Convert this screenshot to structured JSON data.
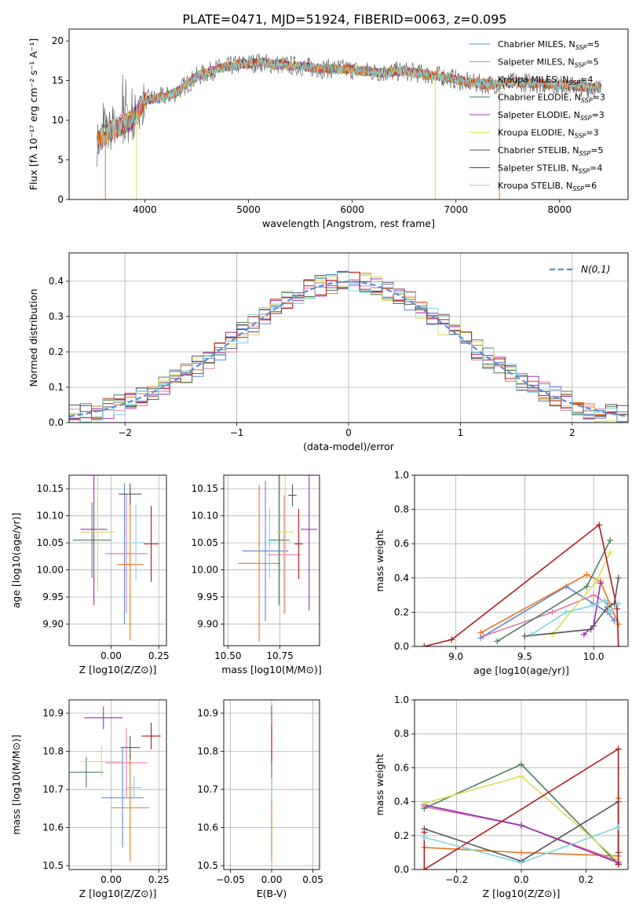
{
  "title": "PLATE=0471, MJD=51924, FIBERID=0063, z=0.095",
  "colors": {
    "Chabrier MILES": "#5b84d6",
    "Salpeter MILES": "#e07aa8",
    "Kroupa MILES": "#e8761e",
    "Chabrier ELODIE": "#4e7d5b",
    "Salpeter ELODIE": "#9b2fb0",
    "Kroupa ELODIE": "#d6df5a",
    "Chabrier STELIB": "#555555",
    "Salpeter STELIB": "#b01c1c",
    "Kroupa STELIB": "#7ed6dd",
    "normal": "#5b8ad6"
  },
  "chart_data": [
    {
      "id": "spectrum",
      "type": "line",
      "xlabel": "wavelength [Angstrom, rest frame]",
      "ylabel": "Flux [fλ 10⁻¹⁷ erg cm⁻² s⁻¹ A⁻¹]",
      "xlim": [
        3270,
        8660
      ],
      "ylim": [
        0,
        21.5
      ],
      "xticks": [
        4000,
        5000,
        6000,
        7000,
        8000
      ],
      "yticks": [
        0,
        5,
        10,
        15,
        20
      ],
      "legend": "top-right",
      "legend_entries": [
        "Chabrier MILES, N_SSP=5",
        "Salpeter MILES, N_SSP=5",
        "Kroupa MILES, N_SSP=4",
        "Chabrier ELODIE, N_SSP=3",
        "Salpeter ELODIE, N_SSP=3",
        "Kroupa ELODIE, N_SSP=3",
        "Chabrier STELIB, N_SSP=5",
        "Salpeter STELIB, N_SSP=4",
        "Kroupa STELIB, N_SSP=6"
      ],
      "continuum": [
        [
          3540,
          7.0
        ],
        [
          3600,
          8.0
        ],
        [
          3700,
          9.0
        ],
        [
          3800,
          9.5
        ],
        [
          3900,
          10.5
        ],
        [
          4000,
          12.5
        ],
        [
          4200,
          13.0
        ],
        [
          4300,
          13.5
        ],
        [
          4500,
          15.5
        ],
        [
          4700,
          16.5
        ],
        [
          4900,
          17.0
        ],
        [
          5100,
          17.3
        ],
        [
          5300,
          17.0
        ],
        [
          5500,
          16.8
        ],
        [
          5700,
          16.5
        ],
        [
          5900,
          16.5
        ],
        [
          6100,
          16.2
        ],
        [
          6300,
          16.0
        ],
        [
          6500,
          16.2
        ],
        [
          6700,
          15.8
        ],
        [
          6900,
          15.5
        ],
        [
          7100,
          14.8
        ],
        [
          7300,
          14.5
        ],
        [
          7600,
          14.8
        ],
        [
          8000,
          14.5
        ],
        [
          8400,
          14.0
        ]
      ]
    },
    {
      "id": "residuals",
      "type": "bar",
      "xlabel": "(data-model)/error",
      "ylabel": "Normed distribution",
      "xlim": [
        -2.5,
        2.5
      ],
      "ylim": [
        0,
        0.48
      ],
      "xticks": [
        -2,
        -1,
        0,
        1,
        2
      ],
      "yticks": [
        0.0,
        0.1,
        0.2,
        0.3,
        0.4
      ],
      "legend": "top-right",
      "legend_entries": [
        "N(0,1)"
      ],
      "bin_width": 0.1
    },
    {
      "id": "age_vs_Z",
      "type": "scatter",
      "xlabel": "Z [log10(Z/Z⊙)]",
      "ylabel": "age [log10(age/yr)]",
      "xlim": [
        -0.22,
        0.29
      ],
      "ylim": [
        9.86,
        10.175
      ],
      "xticks": [
        0.0,
        0.25
      ],
      "yticks": [
        9.9,
        9.95,
        10.0,
        10.05,
        10.1,
        10.15
      ],
      "points": [
        {
          "model": "Chabrier MILES",
          "x": 0.07,
          "y": 10.03,
          "xerr": 0.1,
          "yerr": 0.13
        },
        {
          "model": "Salpeter MILES",
          "x": 0.08,
          "y": 10.03,
          "xerr": 0.11,
          "yerr": 0.11
        },
        {
          "model": "Kroupa MILES",
          "x": 0.1,
          "y": 10.01,
          "xerr": 0.07,
          "yerr": 0.14
        },
        {
          "model": "Chabrier ELODIE",
          "x": -0.1,
          "y": 10.055,
          "xerr": 0.1,
          "yerr": 0.07
        },
        {
          "model": "Salpeter ELODIE",
          "x": -0.09,
          "y": 10.075,
          "xerr": 0.07,
          "yerr": 0.14
        },
        {
          "model": "Kroupa ELODIE",
          "x": -0.07,
          "y": 10.07,
          "xerr": 0.09,
          "yerr": 0.11
        },
        {
          "model": "Chabrier STELIB",
          "x": 0.1,
          "y": 10.14,
          "xerr": 0.06,
          "yerr": 0.02
        },
        {
          "model": "Salpeter STELIB",
          "x": 0.21,
          "y": 10.048,
          "xerr": 0.04,
          "yerr": 0.07
        },
        {
          "model": "Kroupa STELIB",
          "x": 0.13,
          "y": 10.05,
          "xerr": 0.05,
          "yerr": 0.07
        }
      ]
    },
    {
      "id": "age_vs_mass",
      "type": "scatter",
      "xlabel": "mass [log10(M/M⊙)]",
      "ylabel": "",
      "xlim": [
        10.48,
        10.94
      ],
      "ylim": [
        9.86,
        10.175
      ],
      "xticks": [
        10.5,
        10.75
      ],
      "yticks": [
        9.9,
        9.95,
        10.0,
        10.05,
        10.1,
        10.15
      ],
      "points": [
        {
          "model": "Chabrier MILES",
          "x": 10.68,
          "y": 10.035,
          "xerr": 0.11,
          "yerr": 0.13
        },
        {
          "model": "Salpeter MILES",
          "x": 10.77,
          "y": 10.028,
          "xerr": 0.08,
          "yerr": 0.11
        },
        {
          "model": "Kroupa MILES",
          "x": 10.65,
          "y": 10.012,
          "xerr": 0.1,
          "yerr": 0.145
        },
        {
          "model": "Chabrier ELODIE",
          "x": 10.745,
          "y": 10.055,
          "xerr": 0.05,
          "yerr": 0.12
        },
        {
          "model": "Salpeter ELODIE",
          "x": 10.89,
          "y": 10.075,
          "xerr": 0.04,
          "yerr": 0.15
        },
        {
          "model": "Kroupa ELODIE",
          "x": 10.775,
          "y": 10.07,
          "xerr": 0.04,
          "yerr": 0.15
        },
        {
          "model": "Chabrier STELIB",
          "x": 10.81,
          "y": 10.138,
          "xerr": 0.02,
          "yerr": 0.02
        },
        {
          "model": "Salpeter STELIB",
          "x": 10.84,
          "y": 10.048,
          "xerr": 0.02,
          "yerr": 0.065
        },
        {
          "model": "Kroupa STELIB",
          "x": 10.7,
          "y": 10.05,
          "xerr": 0.03,
          "yerr": 0.065
        }
      ]
    },
    {
      "id": "weight_vs_age",
      "type": "line",
      "xlabel": "age [log10(age/yr)]",
      "ylabel": "mass weight",
      "xlim": [
        8.7,
        10.25
      ],
      "ylim": [
        0,
        1.0
      ],
      "xticks": [
        9.0,
        9.5,
        10.0
      ],
      "yticks": [
        0.0,
        0.2,
        0.4,
        0.6,
        0.8,
        1.0
      ],
      "series": [
        {
          "model": "Chabrier MILES",
          "x": [
            9.18,
            9.8,
            10.0,
            10.1,
            10.15
          ],
          "y": [
            0.05,
            0.35,
            0.25,
            0.2,
            0.15
          ]
        },
        {
          "model": "Salpeter MILES",
          "x": [
            9.2,
            9.7,
            10.0,
            10.1,
            10.12
          ],
          "y": [
            0.06,
            0.2,
            0.3,
            0.25,
            0.19
          ]
        },
        {
          "model": "Kroupa MILES",
          "x": [
            9.18,
            9.95,
            10.05,
            10.18
          ],
          "y": [
            0.08,
            0.42,
            0.38,
            0.13
          ]
        },
        {
          "model": "Chabrier ELODIE",
          "x": [
            9.3,
            9.95,
            10.12
          ],
          "y": [
            0.03,
            0.35,
            0.62
          ]
        },
        {
          "model": "Salpeter ELODIE",
          "x": [
            9.93,
            10.0,
            10.05
          ],
          "y": [
            0.07,
            0.12,
            0.37
          ]
        },
        {
          "model": "Kroupa ELODIE",
          "x": [
            9.7,
            10.02,
            10.12
          ],
          "y": [
            0.07,
            0.38,
            0.55
          ]
        },
        {
          "model": "Chabrier STELIB",
          "x": [
            9.5,
            9.98,
            10.1,
            10.15,
            10.18
          ],
          "y": [
            0.06,
            0.1,
            0.23,
            0.25,
            0.4
          ]
        },
        {
          "model": "Salpeter STELIB",
          "x": [
            8.77,
            8.97,
            10.04,
            10.17,
            10.18
          ],
          "y": [
            0.0,
            0.04,
            0.71,
            0.22,
            0.0
          ]
        },
        {
          "model": "Kroupa STELIB",
          "x": [
            9.55,
            9.8,
            10.0,
            10.08,
            10.12,
            10.18
          ],
          "y": [
            0.07,
            0.2,
            0.24,
            0.27,
            0.2,
            0.25
          ]
        }
      ]
    },
    {
      "id": "mass_vs_Z",
      "type": "scatter",
      "xlabel": "Z [log10(Z/Z⊙)]",
      "ylabel": "mass [log10(M/M⊙)]",
      "xlim": [
        -0.22,
        0.29
      ],
      "ylim": [
        10.49,
        10.935
      ],
      "xticks": [
        0.0,
        0.25
      ],
      "yticks": [
        10.5,
        10.6,
        10.7,
        10.8,
        10.9
      ],
      "points": [
        {
          "model": "Chabrier MILES",
          "x": 0.06,
          "y": 10.678,
          "xerr": 0.11,
          "yerr": 0.13
        },
        {
          "model": "Salpeter MILES",
          "x": 0.08,
          "y": 10.77,
          "xerr": 0.11,
          "yerr": 0.09
        },
        {
          "model": "Kroupa MILES",
          "x": 0.1,
          "y": 10.652,
          "xerr": 0.1,
          "yerr": 0.14
        },
        {
          "model": "Chabrier ELODIE",
          "x": -0.13,
          "y": 10.745,
          "xerr": 0.09,
          "yerr": 0.04
        },
        {
          "model": "Salpeter ELODIE",
          "x": -0.04,
          "y": 10.888,
          "xerr": 0.1,
          "yerr": 0.03
        },
        {
          "model": "Kroupa ELODIE",
          "x": -0.05,
          "y": 10.773,
          "xerr": 0.11,
          "yerr": 0.04
        },
        {
          "model": "Chabrier STELIB",
          "x": 0.1,
          "y": 10.81,
          "xerr": 0.05,
          "yerr": 0.03
        },
        {
          "model": "Salpeter STELIB",
          "x": 0.21,
          "y": 10.84,
          "xerr": 0.05,
          "yerr": 0.035
        },
        {
          "model": "Kroupa STELIB",
          "x": 0.12,
          "y": 10.705,
          "xerr": 0.04,
          "yerr": 0.03
        }
      ]
    },
    {
      "id": "mass_vs_ebv",
      "type": "scatter",
      "xlabel": "E(B-V)",
      "ylabel": "",
      "xlim": [
        -0.058,
        0.058
      ],
      "ylim": [
        10.49,
        10.935
      ],
      "xticks": [
        -0.05,
        0.0,
        0.05
      ],
      "yticks": [
        10.5,
        10.6,
        10.7,
        10.8,
        10.9
      ],
      "points": [
        {
          "model": "Kroupa MILES",
          "x": 0.0,
          "y": 10.65,
          "xerr": 0,
          "yerr": 0.14
        },
        {
          "model": "Salpeter ELODIE",
          "x": 0.0,
          "y": 10.85,
          "xerr": 0,
          "yerr": 0.07
        },
        {
          "model": "Salpeter STELIB",
          "x": 0.0,
          "y": 10.82,
          "xerr": 0,
          "yerr": 0.05
        },
        {
          "model": "Chabrier ELODIE",
          "x": 0.0,
          "y": 10.72,
          "xerr": 0,
          "yerr": 0.05
        },
        {
          "model": "Kroupa STELIB",
          "x": 0.0,
          "y": 10.7,
          "xerr": 0,
          "yerr": 0.03
        }
      ]
    },
    {
      "id": "weight_vs_Z",
      "type": "line",
      "xlabel": "Z [log10(Z/Z⊙)]",
      "ylabel": "mass weight",
      "xlim": [
        -0.33,
        0.33
      ],
      "ylim": [
        0,
        1.0
      ],
      "xticks": [
        -0.2,
        0.0,
        0.2
      ],
      "yticks": [
        0.0,
        0.2,
        0.4,
        0.6,
        0.8,
        1.0
      ],
      "series": [
        {
          "model": "Chabrier MILES",
          "x": [
            -0.3,
            0.0,
            0.3
          ],
          "y": [
            0.38,
            0.26,
            0.04
          ]
        },
        {
          "model": "Salpeter MILES",
          "x": [
            -0.3,
            0.0,
            0.3
          ],
          "y": [
            0.37,
            0.26,
            0.05
          ]
        },
        {
          "model": "Kroupa MILES",
          "x": [
            -0.3,
            0.0,
            0.3,
            0.3
          ],
          "y": [
            0.13,
            0.1,
            0.08,
            0.42
          ]
        },
        {
          "model": "Chabrier ELODIE",
          "x": [
            -0.3,
            0.0,
            0.3
          ],
          "y": [
            0.36,
            0.62,
            0.03
          ]
        },
        {
          "model": "Salpeter ELODIE",
          "x": [
            -0.3,
            0.0,
            0.3
          ],
          "y": [
            0.38,
            0.26,
            0.04
          ]
        },
        {
          "model": "Kroupa ELODIE",
          "x": [
            -0.3,
            0.0,
            0.3
          ],
          "y": [
            0.39,
            0.55,
            0.05
          ]
        },
        {
          "model": "Chabrier STELIB",
          "x": [
            -0.3,
            0.0,
            0.3,
            0.3
          ],
          "y": [
            0.24,
            0.05,
            0.4,
            0.1
          ]
        },
        {
          "model": "Salpeter STELIB",
          "x": [
            -0.3,
            -0.3,
            0.3,
            0.3
          ],
          "y": [
            0.22,
            0.0,
            0.71,
            0.03
          ]
        },
        {
          "model": "Kroupa STELIB",
          "x": [
            -0.3,
            0.0,
            0.3
          ],
          "y": [
            0.19,
            0.04,
            0.25
          ]
        }
      ]
    }
  ]
}
